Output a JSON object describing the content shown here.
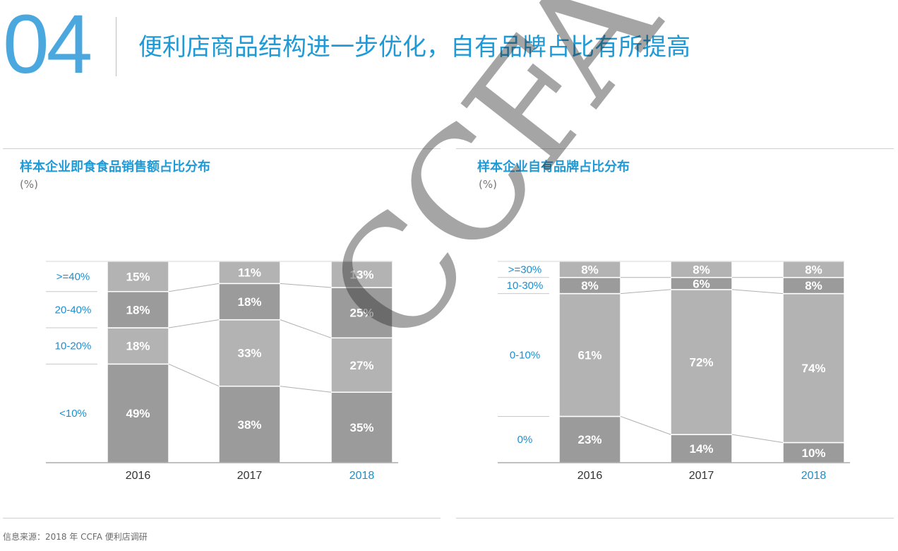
{
  "header": {
    "page_number": "04",
    "title": "便利店商品结构进一步优化，自有品牌占比有所提高"
  },
  "source": "信息来源：2018 年 CCFA 便利店调研",
  "watermark": "CCFA",
  "colors": {
    "accent": "#1f9ad6",
    "page_number": "#4aa8df",
    "bar_dark": "#9b9b9b",
    "bar_light": "#b3b3b3",
    "label_blue": "#1a8fd0"
  },
  "chart_data": [
    {
      "type": "bar",
      "stacked": true,
      "percent": true,
      "title": "样本企业即食食品销售额占比分布",
      "unit": "(%)",
      "categories": [
        "2016",
        "2017",
        "2018"
      ],
      "highlight_category": "2018",
      "series": [
        {
          "name": "<10%",
          "values": [
            49,
            38,
            35
          ]
        },
        {
          "name": "10-20%",
          "values": [
            18,
            33,
            27
          ]
        },
        {
          "name": "20-40%",
          "values": [
            18,
            18,
            25
          ]
        },
        {
          "name": ">=40%",
          "values": [
            15,
            11,
            13
          ]
        }
      ],
      "ylim": [
        0,
        100
      ],
      "legend": "left",
      "grid": false
    },
    {
      "type": "bar",
      "stacked": true,
      "percent": true,
      "title": "样本企业自有品牌占比分布",
      "unit": "(%)",
      "categories": [
        "2016",
        "2017",
        "2018"
      ],
      "highlight_category": "2018",
      "series": [
        {
          "name": "0%",
          "values": [
            23,
            14,
            10
          ]
        },
        {
          "name": "0-10%",
          "values": [
            61,
            72,
            74
          ]
        },
        {
          "name": "10-30%",
          "values": [
            8,
            6,
            8
          ]
        },
        {
          "name": ">=30%",
          "values": [
            8,
            8,
            8
          ]
        }
      ],
      "ylim": [
        0,
        100
      ],
      "legend": "left",
      "grid": false
    }
  ]
}
